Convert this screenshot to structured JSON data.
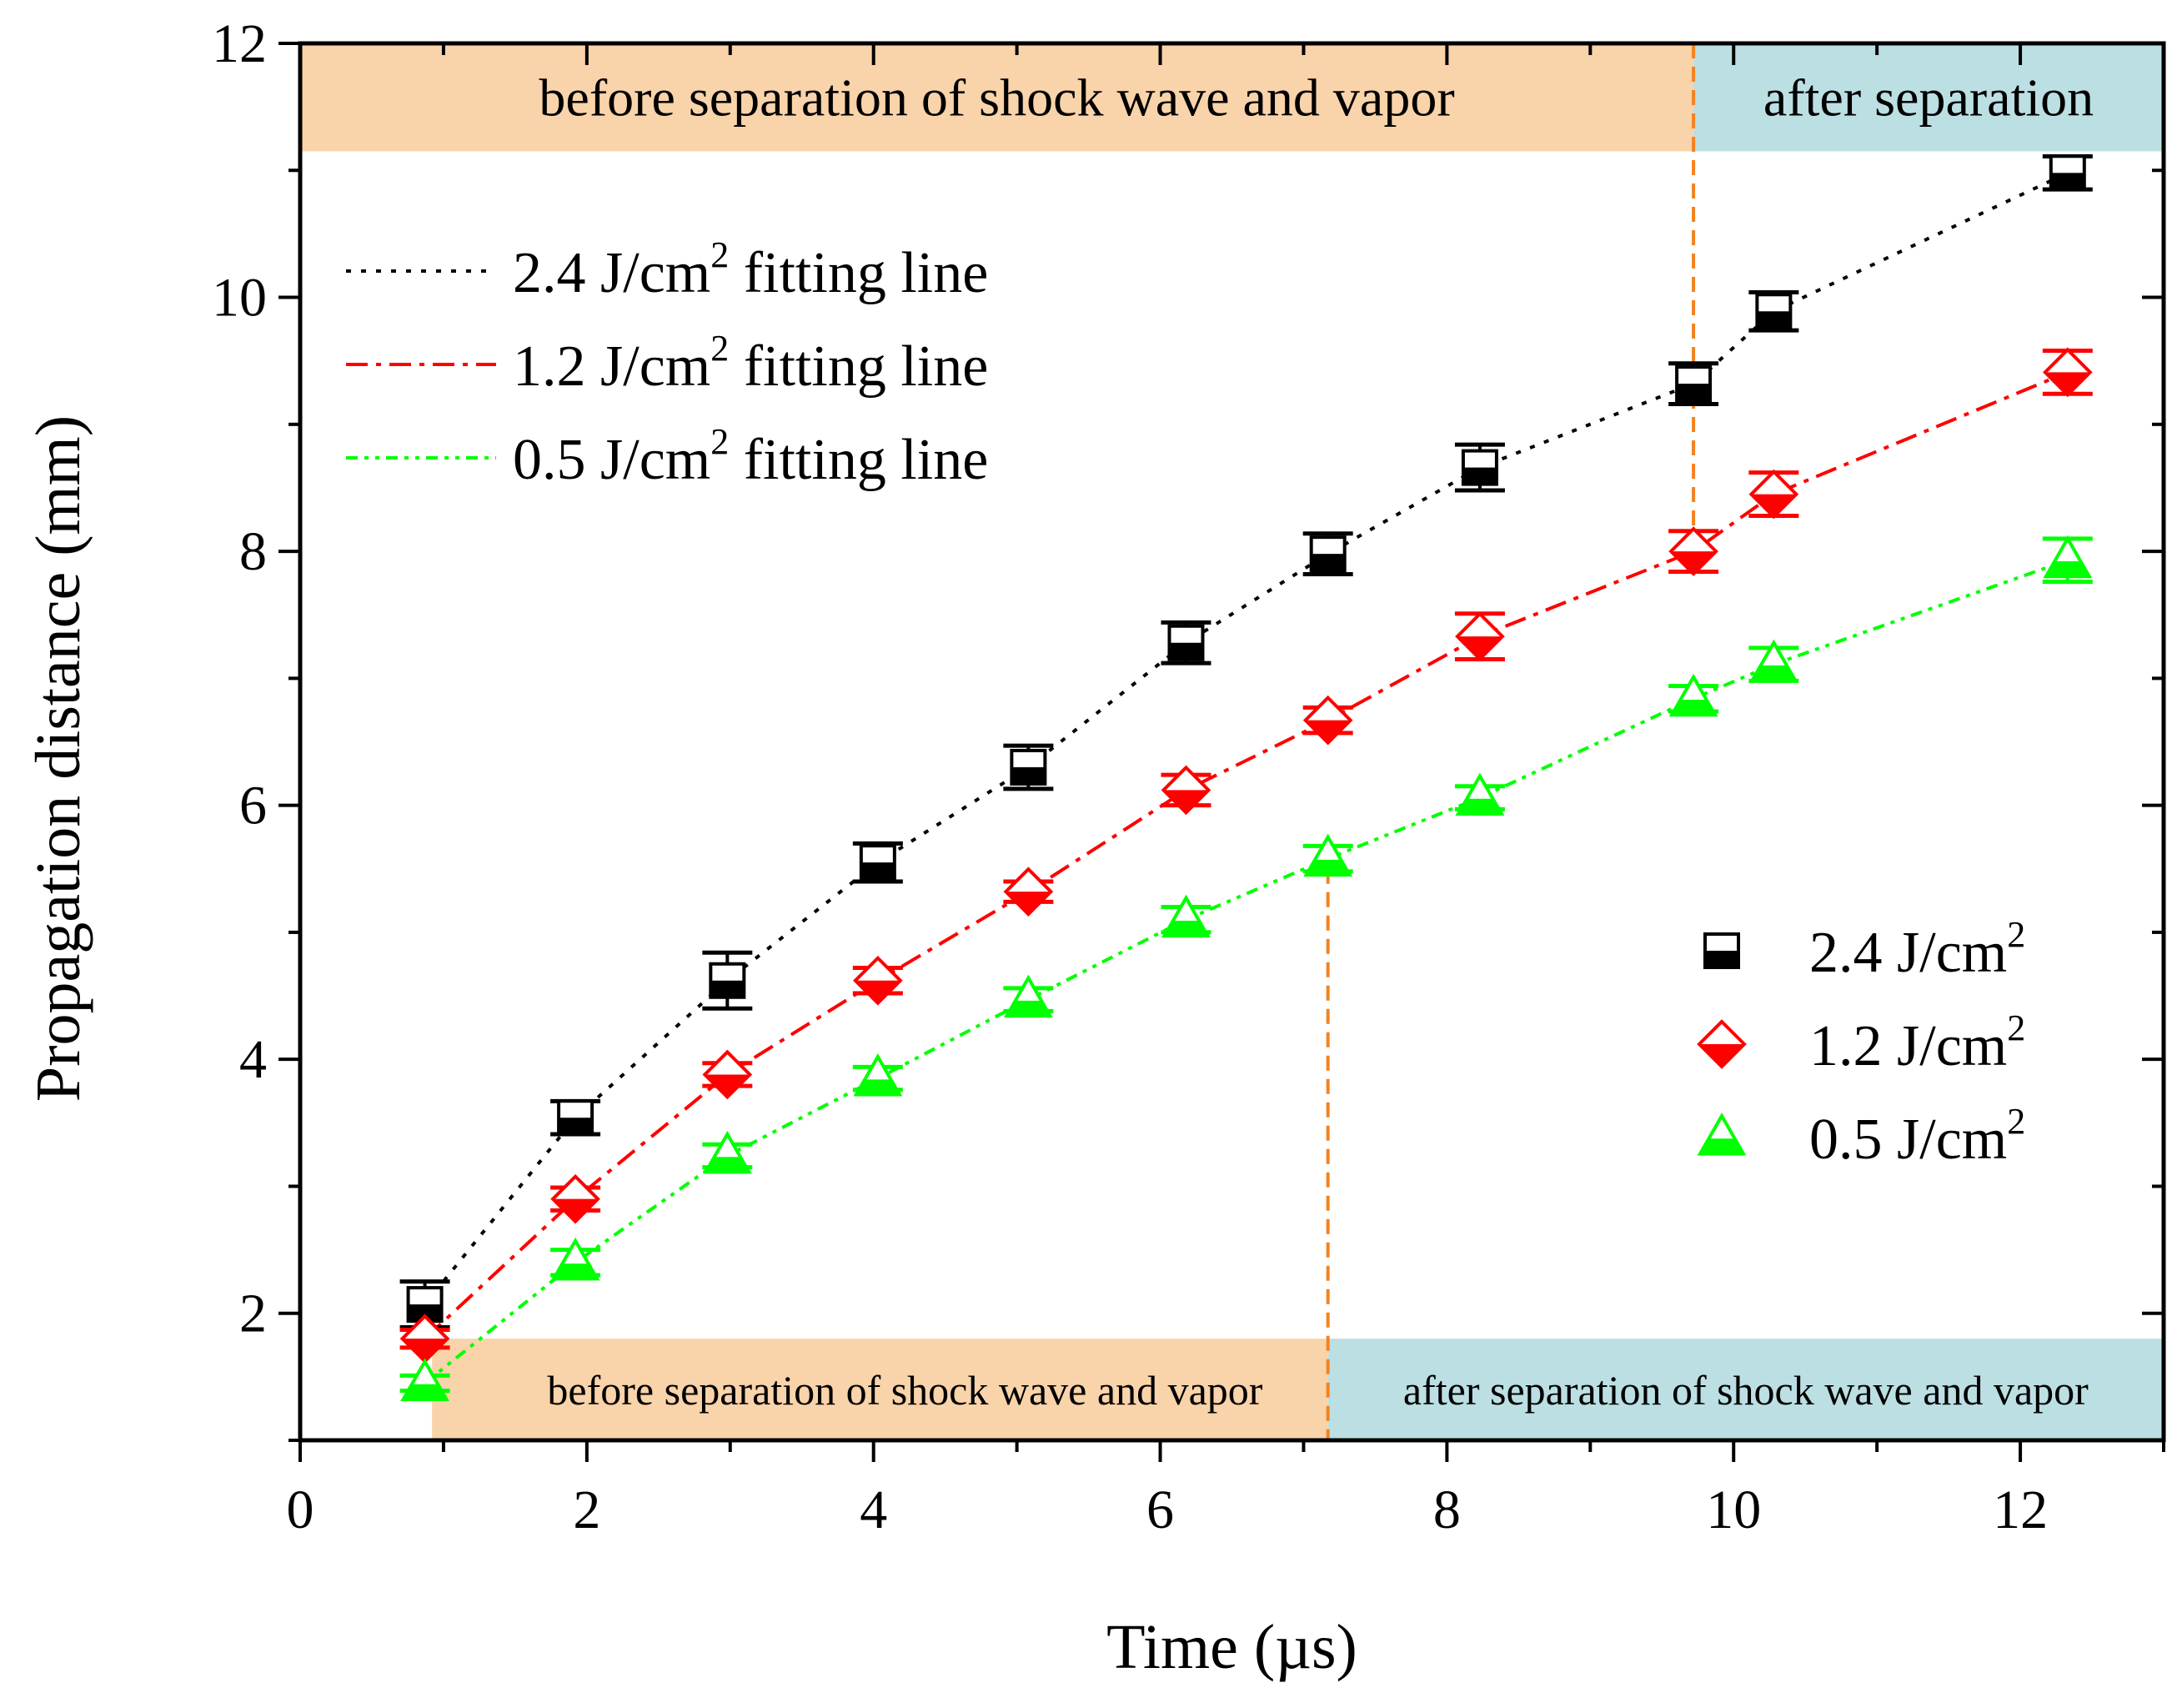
{
  "chart_data": {
    "type": "scatter",
    "xlabel": "Time (µs)",
    "ylabel": "Propagation distance (mm)",
    "xlim": [
      0,
      13
    ],
    "ylim": [
      1,
      12
    ],
    "xticks": [
      0,
      2,
      4,
      6,
      8,
      10,
      12
    ],
    "yticks": [
      2,
      4,
      6,
      8,
      10,
      12
    ],
    "xtick_labels": [
      "0",
      "2",
      "4",
      "6",
      "8",
      "10",
      "12"
    ],
    "ytick_labels": [
      "2",
      "4",
      "6",
      "8",
      "10",
      "12"
    ],
    "colors": {
      "before_band": "#f9d3aa",
      "after_band": "#bcdfe3",
      "divider": "#f5821f",
      "series_2_4": "#000000",
      "series_1_2": "#ff0000",
      "series_0_5": "#00ff00"
    },
    "series": [
      {
        "name": "2.4 J/cm",
        "fit_name": "2.4 J/cm",
        "sup": "2",
        "fit_suffix": " fitting line",
        "marker": "square",
        "color": "#000000",
        "x": [
          0.87,
          1.92,
          2.98,
          4.03,
          5.08,
          6.18,
          7.17,
          8.23,
          9.72,
          10.28,
          12.33
        ],
        "y": [
          2.07,
          3.54,
          4.62,
          5.55,
          6.3,
          7.28,
          7.98,
          8.66,
          9.32,
          9.89,
          10.98
        ],
        "err": [
          0.18,
          0.13,
          0.22,
          0.15,
          0.17,
          0.16,
          0.16,
          0.18,
          0.16,
          0.15,
          0.13
        ]
      },
      {
        "name": "1.2 J/cm",
        "fit_name": "1.2 J/cm",
        "sup": "2",
        "fit_suffix": " fitting line",
        "marker": "diamond",
        "color": "#ff0000",
        "x": [
          0.87,
          1.92,
          2.98,
          4.03,
          5.08,
          6.18,
          7.17,
          8.23,
          9.72,
          10.28,
          12.33
        ],
        "y": [
          1.8,
          2.9,
          3.88,
          4.62,
          5.32,
          6.12,
          6.67,
          7.33,
          8.0,
          8.45,
          9.41
        ],
        "err": [
          0.07,
          0.09,
          0.09,
          0.1,
          0.08,
          0.12,
          0.1,
          0.18,
          0.16,
          0.17,
          0.17
        ]
      },
      {
        "name": "0.5 J/cm",
        "fit_name": "0.5 J/cm",
        "sup": "2",
        "fit_suffix": " fitting line",
        "marker": "triangle",
        "color": "#00ff00",
        "x": [
          0.87,
          1.92,
          2.98,
          4.03,
          5.08,
          6.18,
          7.17,
          8.23,
          9.72,
          10.28,
          12.33
        ],
        "y": [
          1.45,
          2.4,
          3.24,
          3.85,
          4.47,
          5.1,
          5.58,
          6.06,
          6.84,
          7.11,
          7.93
        ],
        "err": [
          0.06,
          0.1,
          0.09,
          0.09,
          0.09,
          0.1,
          0.1,
          0.09,
          0.1,
          0.13,
          0.17
        ]
      }
    ],
    "top_band": {
      "before_label": "before separation of shock wave and vapor",
      "after_label": "after separation",
      "divider_x": 9.72,
      "y_range": [
        11.15,
        12
      ]
    },
    "bottom_band": {
      "before_label": "before separation of shock wave and vapor",
      "after_label": "after separation of shock wave and vapor",
      "start_x": 0.92,
      "divider_x": 7.17,
      "y_range": [
        1,
        1.8
      ]
    }
  }
}
